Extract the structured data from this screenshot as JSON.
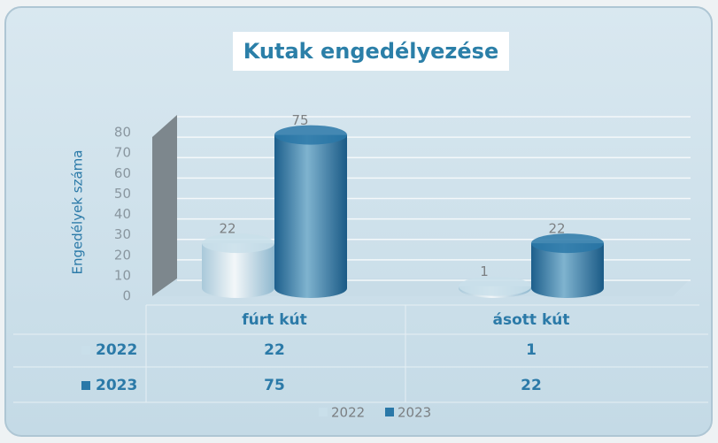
{
  "chart_data": {
    "type": "bar",
    "title": "Kutak engedélyezése",
    "y_label": "Engedélyek száma",
    "categories": [
      "fúrt kút",
      "ásott kút"
    ],
    "series": [
      {
        "name": "2022",
        "color": "#c9dfea",
        "values": [
          22,
          1
        ]
      },
      {
        "name": "2023",
        "color": "#2a78a8",
        "values": [
          75,
          22
        ]
      }
    ],
    "ylim": [
      0,
      80
    ],
    "yticks": [
      0,
      10,
      20,
      30,
      40,
      50,
      60,
      70,
      80
    ],
    "grid": true,
    "legend": "bottom"
  }
}
